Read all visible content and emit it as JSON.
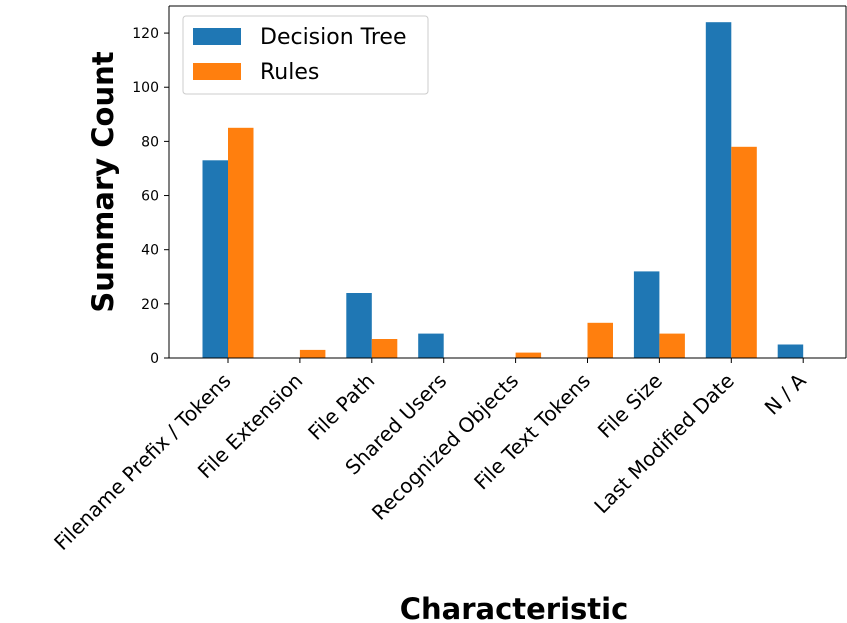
{
  "chart_data": {
    "type": "bar",
    "categories": [
      "Filename Prefix / Tokens",
      "File Extension",
      "File Path",
      "Shared Users",
      "Recognized Objects",
      "File Text Tokens",
      "File Size",
      "Last Modified Date",
      "N / A"
    ],
    "series": [
      {
        "name": "Decision Tree",
        "color": "#1f77b4",
        "values": [
          73,
          0,
          24,
          9,
          0,
          0,
          32,
          124,
          5
        ]
      },
      {
        "name": "Rules",
        "color": "#ff7f0e",
        "values": [
          85,
          3,
          7,
          0,
          2,
          13,
          9,
          78,
          0
        ]
      }
    ],
    "xlabel": "Characteristic",
    "ylabel": "Summary Count",
    "ylim": [
      0,
      130
    ],
    "yticks": [
      0,
      20,
      40,
      60,
      80,
      100,
      120
    ],
    "grid": false,
    "legend_position": "top-left"
  }
}
